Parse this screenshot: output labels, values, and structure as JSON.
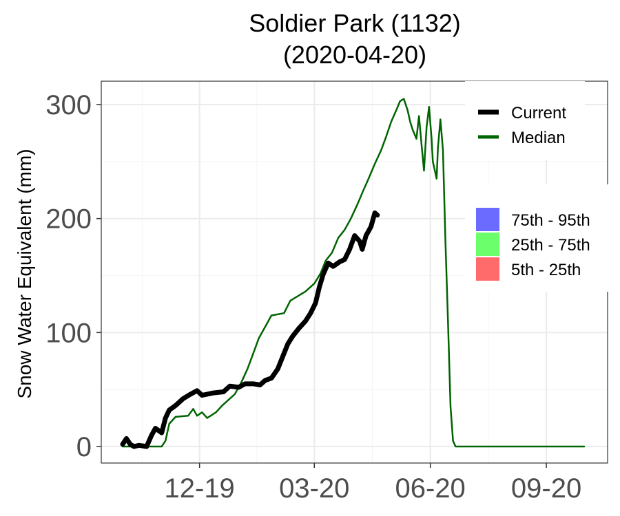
{
  "chart_data": {
    "type": "line",
    "title": "Soldier Park (1132)",
    "subtitle": "(2020-04-20)",
    "xlabel": "",
    "ylabel": "Snow Water Equivalent (mm)",
    "ylim": [
      -15,
      320
    ],
    "xlim": [
      "2019-10-01",
      "2020-10-01"
    ],
    "x_ticks": [
      {
        "date": "2019-12-01",
        "label": "12-19"
      },
      {
        "date": "2020-03-01",
        "label": "03-20"
      },
      {
        "date": "2020-06-01",
        "label": "06-20"
      },
      {
        "date": "2020-09-01",
        "label": "09-20"
      }
    ],
    "y_ticks": [
      0,
      100,
      200,
      300
    ],
    "grid": true,
    "legend_position": "right",
    "series": [
      {
        "name": "Current",
        "color": "#000000",
        "points": [
          [
            "2019-10-01",
            2
          ],
          [
            "2019-10-04",
            7
          ],
          [
            "2019-10-07",
            2
          ],
          [
            "2019-10-10",
            0
          ],
          [
            "2019-10-14",
            1
          ],
          [
            "2019-10-20",
            0
          ],
          [
            "2019-10-24",
            10
          ],
          [
            "2019-10-27",
            16
          ],
          [
            "2019-11-01",
            12
          ],
          [
            "2019-11-04",
            25
          ],
          [
            "2019-11-07",
            32
          ],
          [
            "2019-11-12",
            36
          ],
          [
            "2019-11-18",
            42
          ],
          [
            "2019-11-24",
            46
          ],
          [
            "2019-11-29",
            49
          ],
          [
            "2019-12-03",
            45
          ],
          [
            "2019-12-12",
            47
          ],
          [
            "2019-12-20",
            48
          ],
          [
            "2019-12-25",
            53
          ],
          [
            "2020-01-01",
            52
          ],
          [
            "2020-01-06",
            55
          ],
          [
            "2020-01-13",
            55
          ],
          [
            "2020-01-18",
            54
          ],
          [
            "2020-01-22",
            58
          ],
          [
            "2020-01-27",
            60
          ],
          [
            "2020-02-01",
            68
          ],
          [
            "2020-02-05",
            79
          ],
          [
            "2020-02-09",
            90
          ],
          [
            "2020-02-13",
            97
          ],
          [
            "2020-02-18",
            104
          ],
          [
            "2020-02-23",
            110
          ],
          [
            "2020-02-27",
            117
          ],
          [
            "2020-03-02",
            126
          ],
          [
            "2020-03-05",
            140
          ],
          [
            "2020-03-08",
            151
          ],
          [
            "2020-03-12",
            161
          ],
          [
            "2020-03-16",
            158
          ],
          [
            "2020-03-21",
            162
          ],
          [
            "2020-03-25",
            164
          ],
          [
            "2020-03-29",
            173
          ],
          [
            "2020-04-02",
            185
          ],
          [
            "2020-04-06",
            180
          ],
          [
            "2020-04-08",
            173
          ],
          [
            "2020-04-11",
            185
          ],
          [
            "2020-04-15",
            193
          ],
          [
            "2020-04-18",
            205
          ],
          [
            "2020-04-20",
            203
          ]
        ]
      },
      {
        "name": "Median",
        "color": "#006400",
        "points": [
          [
            "2019-10-01",
            0
          ],
          [
            "2019-10-16",
            0
          ],
          [
            "2019-10-17",
            2
          ],
          [
            "2019-10-19",
            0
          ],
          [
            "2019-11-01",
            0
          ],
          [
            "2019-11-04",
            5
          ],
          [
            "2019-11-07",
            20
          ],
          [
            "2019-11-12",
            26
          ],
          [
            "2019-11-22",
            27
          ],
          [
            "2019-11-26",
            33
          ],
          [
            "2019-11-29",
            27
          ],
          [
            "2019-12-03",
            30
          ],
          [
            "2019-12-07",
            25
          ],
          [
            "2019-12-14",
            30
          ],
          [
            "2019-12-19",
            36
          ],
          [
            "2019-12-29",
            46
          ],
          [
            "2020-01-03",
            56
          ],
          [
            "2020-01-08",
            68
          ],
          [
            "2020-01-12",
            80
          ],
          [
            "2020-01-17",
            95
          ],
          [
            "2020-01-22",
            105
          ],
          [
            "2020-01-27",
            115
          ],
          [
            "2020-02-06",
            117
          ],
          [
            "2020-02-11",
            128
          ],
          [
            "2020-02-17",
            132
          ],
          [
            "2020-02-23",
            136
          ],
          [
            "2020-03-01",
            143
          ],
          [
            "2020-03-06",
            152
          ],
          [
            "2020-03-10",
            163
          ],
          [
            "2020-03-15",
            170
          ],
          [
            "2020-03-20",
            183
          ],
          [
            "2020-03-25",
            190
          ],
          [
            "2020-03-30",
            200
          ],
          [
            "2020-04-04",
            212
          ],
          [
            "2020-04-09",
            225
          ],
          [
            "2020-04-13",
            235
          ],
          [
            "2020-04-18",
            248
          ],
          [
            "2020-04-23",
            260
          ],
          [
            "2020-04-27",
            272
          ],
          [
            "2020-05-01",
            285
          ],
          [
            "2020-05-05",
            295
          ],
          [
            "2020-05-08",
            303
          ],
          [
            "2020-05-11",
            305
          ],
          [
            "2020-05-14",
            295
          ],
          [
            "2020-05-16",
            285
          ],
          [
            "2020-05-18",
            278
          ],
          [
            "2020-05-21",
            270
          ],
          [
            "2020-05-23",
            290
          ],
          [
            "2020-05-25",
            265
          ],
          [
            "2020-05-27",
            242
          ],
          [
            "2020-05-29",
            280
          ],
          [
            "2020-05-31",
            298
          ],
          [
            "2020-06-02",
            270
          ],
          [
            "2020-06-03",
            250
          ],
          [
            "2020-06-05",
            240
          ],
          [
            "2020-06-06",
            235
          ],
          [
            "2020-06-07",
            262
          ],
          [
            "2020-06-09",
            287
          ],
          [
            "2020-06-11",
            260
          ],
          [
            "2020-06-13",
            180
          ],
          [
            "2020-06-15",
            110
          ],
          [
            "2020-06-17",
            35
          ],
          [
            "2020-06-19",
            5
          ],
          [
            "2020-06-21",
            0
          ],
          [
            "2020-10-01",
            0
          ]
        ]
      }
    ],
    "legend": {
      "lines": [
        {
          "label": "Current",
          "color": "#000000"
        },
        {
          "label": "Median",
          "color": "#006400"
        }
      ],
      "bands": [
        {
          "label": "75th - 95th",
          "color": "#6b6bff"
        },
        {
          "label": "25th - 75th",
          "color": "#6bff6b"
        },
        {
          "label": "5th - 25th",
          "color": "#ff6b6b"
        }
      ]
    }
  }
}
